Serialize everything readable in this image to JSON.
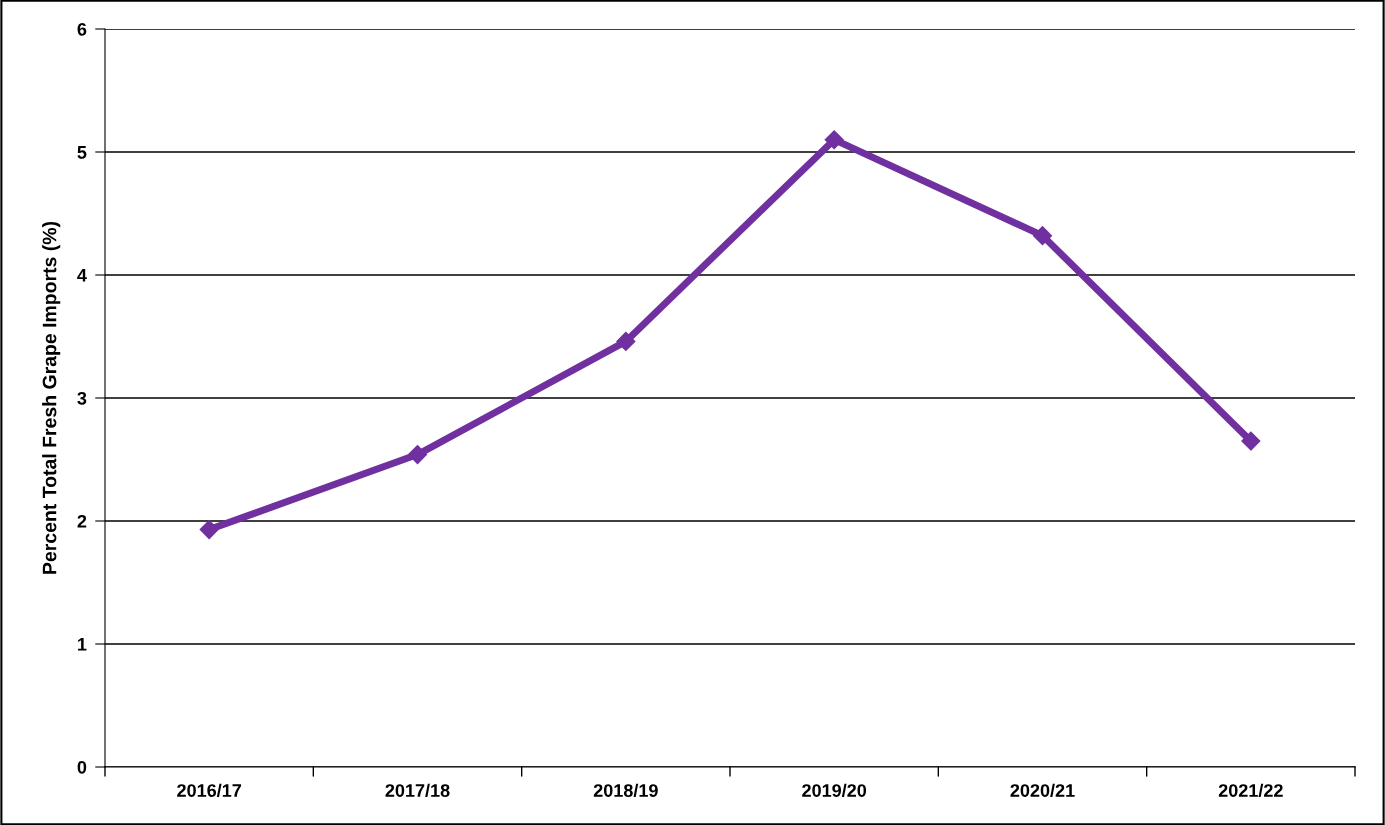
{
  "chart_data": {
    "type": "line",
    "ylabel": "Percent Total Fresh Grape Imports (%)",
    "categories": [
      "2016/17",
      "2017/18",
      "2018/19",
      "2019/20",
      "2020/21",
      "2021/22"
    ],
    "series": [
      {
        "color": "#7030a0",
        "values": [
          1.93,
          2.54,
          3.46,
          5.1,
          4.32,
          2.65
        ]
      }
    ],
    "ylim": [
      0,
      6
    ],
    "yticks": [
      0,
      1,
      2,
      3,
      4,
      5,
      6
    ],
    "grid": "y",
    "marker": "diamond",
    "line_style": "solid"
  }
}
